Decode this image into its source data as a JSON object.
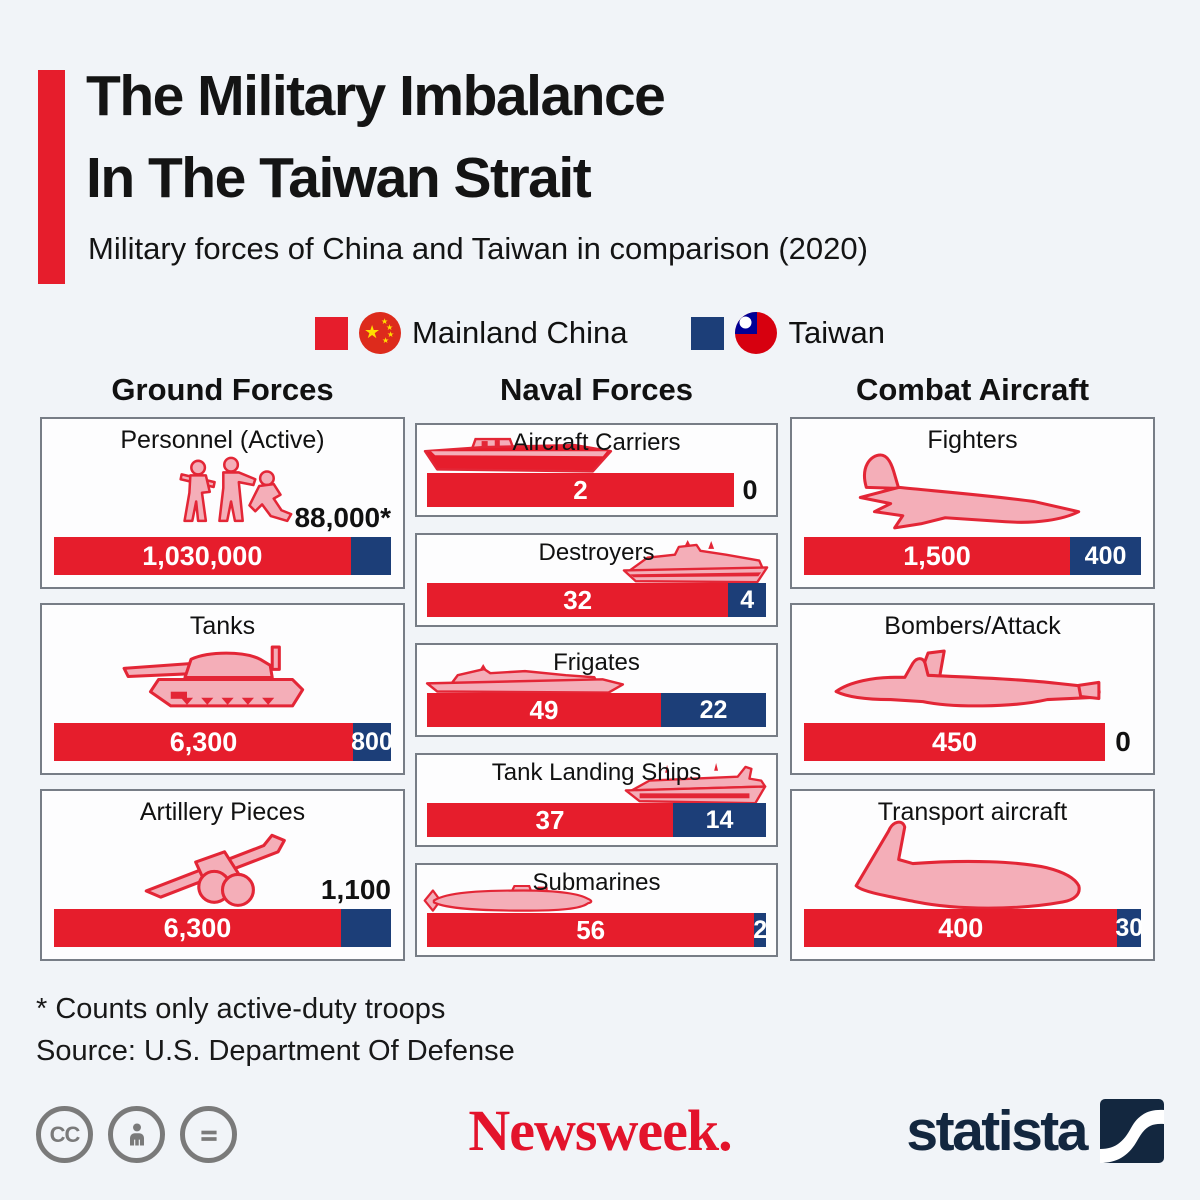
{
  "header": {
    "title_line1": "The Military Imbalance",
    "title_line2": "In The Taiwan Strait",
    "subtitle": "Military forces of China and Taiwan in comparison (2020)"
  },
  "legend": {
    "items": [
      {
        "label": "Mainland China",
        "flag": "china-flag",
        "color_key": "china_red"
      },
      {
        "label": "Taiwan",
        "flag": "taiwan-flag",
        "color_key": "taiwan_blue"
      }
    ]
  },
  "colors": {
    "china_red": "#e61d2c",
    "taiwan_blue": "#1c3e78",
    "background": "#f1f4f8",
    "panel_border": "#777d86",
    "icon_pink": "#f4aeb8",
    "icon_stroke_red": "#e32636",
    "newsweek_red": "#e3132b",
    "statista_navy": "#13273f"
  },
  "chart_data": {
    "type": "bar",
    "title": "The Military Imbalance In The Taiwan Strait",
    "subtitle": "Military forces of China and Taiwan in comparison (2020)",
    "series_names": [
      "Mainland China",
      "Taiwan"
    ],
    "legend_position": "top",
    "columns": [
      {
        "header": "Ground Forces",
        "panels": [
          {
            "label": "Personnel (Active)",
            "icon": "soldiers-icon",
            "china_value": 1030000,
            "taiwan_value": 88000,
            "china_display": "1,030,000",
            "taiwan_display": "88,000*",
            "taiwan_label_style": "above",
            "taiwan_pct": 12
          },
          {
            "label": "Tanks",
            "icon": "tank-icon",
            "china_value": 6300,
            "taiwan_value": 800,
            "china_display": "6,300",
            "taiwan_display": "800",
            "taiwan_label_style": "inside"
          },
          {
            "label": "Artillery Pieces",
            "icon": "artillery-icon",
            "china_value": 6300,
            "taiwan_value": 1100,
            "china_display": "6,300",
            "taiwan_display": "1,100",
            "taiwan_label_style": "above"
          }
        ]
      },
      {
        "header": "Naval Forces",
        "panels": [
          {
            "label": "Aircraft Carriers",
            "icon": "aircraft-carrier-icon",
            "china_value": 2,
            "taiwan_value": 0,
            "china_display": "2",
            "taiwan_display": "0",
            "taiwan_label_style": "outside"
          },
          {
            "label": "Destroyers",
            "icon": "destroyer-icon",
            "china_value": 32,
            "taiwan_value": 4,
            "china_display": "32",
            "taiwan_display": "4",
            "taiwan_label_style": "inside"
          },
          {
            "label": "Frigates",
            "icon": "frigate-icon",
            "china_value": 49,
            "taiwan_value": 22,
            "china_display": "49",
            "taiwan_display": "22",
            "taiwan_label_style": "inside"
          },
          {
            "label": "Tank Landing Ships",
            "icon": "tank-landing-ship-icon",
            "china_value": 37,
            "taiwan_value": 14,
            "china_display": "37",
            "taiwan_display": "14",
            "taiwan_label_style": "inside"
          },
          {
            "label": "Submarines",
            "icon": "submarine-icon",
            "china_value": 56,
            "taiwan_value": 2,
            "china_display": "56",
            "taiwan_display": "2",
            "taiwan_label_style": "inside"
          }
        ]
      },
      {
        "header": "Combat Aircraft",
        "panels": [
          {
            "label": "Fighters",
            "icon": "fighter-icon",
            "china_value": 1500,
            "taiwan_value": 400,
            "china_display": "1,500",
            "taiwan_display": "400",
            "taiwan_label_style": "inside"
          },
          {
            "label": "Bombers/Attack",
            "icon": "bomber-icon",
            "china_value": 450,
            "taiwan_value": 0,
            "china_display": "450",
            "taiwan_display": "0",
            "taiwan_label_style": "outside"
          },
          {
            "label": "Transport aircraft",
            "icon": "transport-aircraft-icon",
            "china_value": 400,
            "taiwan_value": 30,
            "china_display": "400",
            "taiwan_display": "30",
            "taiwan_label_style": "inside"
          }
        ]
      }
    ]
  },
  "footnotes": {
    "asterisk_note": "* Counts only active-duty troops",
    "source": "Source: U.S. Department Of Defense"
  },
  "footer": {
    "newsweek_logo": "Newsweek.",
    "statista_logo": "statista",
    "license_icons": [
      "cc",
      "attribution",
      "no-derivatives"
    ],
    "cc_label": "CC"
  }
}
